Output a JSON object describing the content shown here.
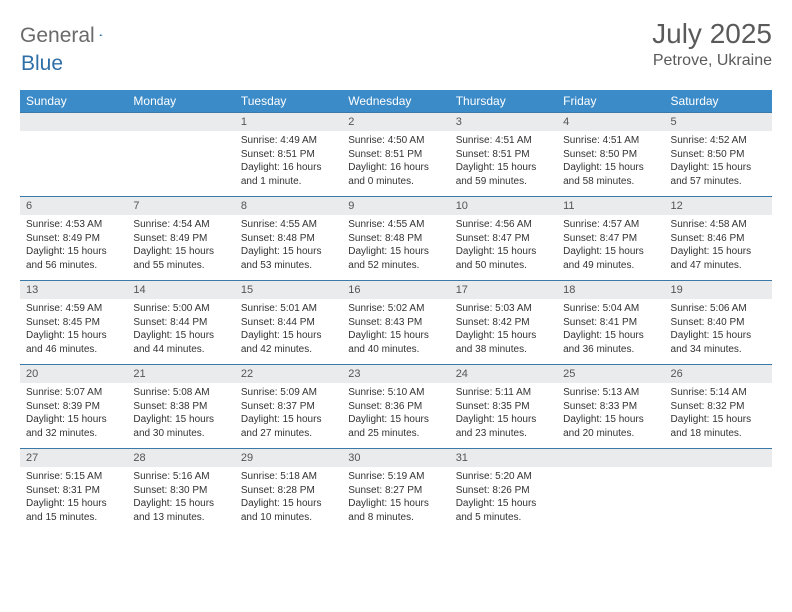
{
  "brand": {
    "name1": "General",
    "name2": "Blue"
  },
  "title": {
    "month": "July 2025",
    "location": "Petrove, Ukraine"
  },
  "weekdays": [
    "Sunday",
    "Monday",
    "Tuesday",
    "Wednesday",
    "Thursday",
    "Friday",
    "Saturday"
  ],
  "colors": {
    "header_bg": "#3b8bc8",
    "header_text": "#ffffff",
    "daynum_bg": "#e9ebec",
    "border": "#3b7aa8",
    "brand_gray": "#6a6a6a",
    "brand_blue": "#2f6fa7",
    "title_color": "#5a5a5a"
  },
  "weeks": [
    [
      null,
      null,
      {
        "n": "1",
        "sunrise": "4:49 AM",
        "sunset": "8:51 PM",
        "daylight": "16 hours and 1 minute."
      },
      {
        "n": "2",
        "sunrise": "4:50 AM",
        "sunset": "8:51 PM",
        "daylight": "16 hours and 0 minutes."
      },
      {
        "n": "3",
        "sunrise": "4:51 AM",
        "sunset": "8:51 PM",
        "daylight": "15 hours and 59 minutes."
      },
      {
        "n": "4",
        "sunrise": "4:51 AM",
        "sunset": "8:50 PM",
        "daylight": "15 hours and 58 minutes."
      },
      {
        "n": "5",
        "sunrise": "4:52 AM",
        "sunset": "8:50 PM",
        "daylight": "15 hours and 57 minutes."
      }
    ],
    [
      {
        "n": "6",
        "sunrise": "4:53 AM",
        "sunset": "8:49 PM",
        "daylight": "15 hours and 56 minutes."
      },
      {
        "n": "7",
        "sunrise": "4:54 AM",
        "sunset": "8:49 PM",
        "daylight": "15 hours and 55 minutes."
      },
      {
        "n": "8",
        "sunrise": "4:55 AM",
        "sunset": "8:48 PM",
        "daylight": "15 hours and 53 minutes."
      },
      {
        "n": "9",
        "sunrise": "4:55 AM",
        "sunset": "8:48 PM",
        "daylight": "15 hours and 52 minutes."
      },
      {
        "n": "10",
        "sunrise": "4:56 AM",
        "sunset": "8:47 PM",
        "daylight": "15 hours and 50 minutes."
      },
      {
        "n": "11",
        "sunrise": "4:57 AM",
        "sunset": "8:47 PM",
        "daylight": "15 hours and 49 minutes."
      },
      {
        "n": "12",
        "sunrise": "4:58 AM",
        "sunset": "8:46 PM",
        "daylight": "15 hours and 47 minutes."
      }
    ],
    [
      {
        "n": "13",
        "sunrise": "4:59 AM",
        "sunset": "8:45 PM",
        "daylight": "15 hours and 46 minutes."
      },
      {
        "n": "14",
        "sunrise": "5:00 AM",
        "sunset": "8:44 PM",
        "daylight": "15 hours and 44 minutes."
      },
      {
        "n": "15",
        "sunrise": "5:01 AM",
        "sunset": "8:44 PM",
        "daylight": "15 hours and 42 minutes."
      },
      {
        "n": "16",
        "sunrise": "5:02 AM",
        "sunset": "8:43 PM",
        "daylight": "15 hours and 40 minutes."
      },
      {
        "n": "17",
        "sunrise": "5:03 AM",
        "sunset": "8:42 PM",
        "daylight": "15 hours and 38 minutes."
      },
      {
        "n": "18",
        "sunrise": "5:04 AM",
        "sunset": "8:41 PM",
        "daylight": "15 hours and 36 minutes."
      },
      {
        "n": "19",
        "sunrise": "5:06 AM",
        "sunset": "8:40 PM",
        "daylight": "15 hours and 34 minutes."
      }
    ],
    [
      {
        "n": "20",
        "sunrise": "5:07 AM",
        "sunset": "8:39 PM",
        "daylight": "15 hours and 32 minutes."
      },
      {
        "n": "21",
        "sunrise": "5:08 AM",
        "sunset": "8:38 PM",
        "daylight": "15 hours and 30 minutes."
      },
      {
        "n": "22",
        "sunrise": "5:09 AM",
        "sunset": "8:37 PM",
        "daylight": "15 hours and 27 minutes."
      },
      {
        "n": "23",
        "sunrise": "5:10 AM",
        "sunset": "8:36 PM",
        "daylight": "15 hours and 25 minutes."
      },
      {
        "n": "24",
        "sunrise": "5:11 AM",
        "sunset": "8:35 PM",
        "daylight": "15 hours and 23 minutes."
      },
      {
        "n": "25",
        "sunrise": "5:13 AM",
        "sunset": "8:33 PM",
        "daylight": "15 hours and 20 minutes."
      },
      {
        "n": "26",
        "sunrise": "5:14 AM",
        "sunset": "8:32 PM",
        "daylight": "15 hours and 18 minutes."
      }
    ],
    [
      {
        "n": "27",
        "sunrise": "5:15 AM",
        "sunset": "8:31 PM",
        "daylight": "15 hours and 15 minutes."
      },
      {
        "n": "28",
        "sunrise": "5:16 AM",
        "sunset": "8:30 PM",
        "daylight": "15 hours and 13 minutes."
      },
      {
        "n": "29",
        "sunrise": "5:18 AM",
        "sunset": "8:28 PM",
        "daylight": "15 hours and 10 minutes."
      },
      {
        "n": "30",
        "sunrise": "5:19 AM",
        "sunset": "8:27 PM",
        "daylight": "15 hours and 8 minutes."
      },
      {
        "n": "31",
        "sunrise": "5:20 AM",
        "sunset": "8:26 PM",
        "daylight": "15 hours and 5 minutes."
      },
      null,
      null
    ]
  ],
  "labels": {
    "sunrise": "Sunrise: ",
    "sunset": "Sunset: ",
    "daylight": "Daylight: "
  }
}
